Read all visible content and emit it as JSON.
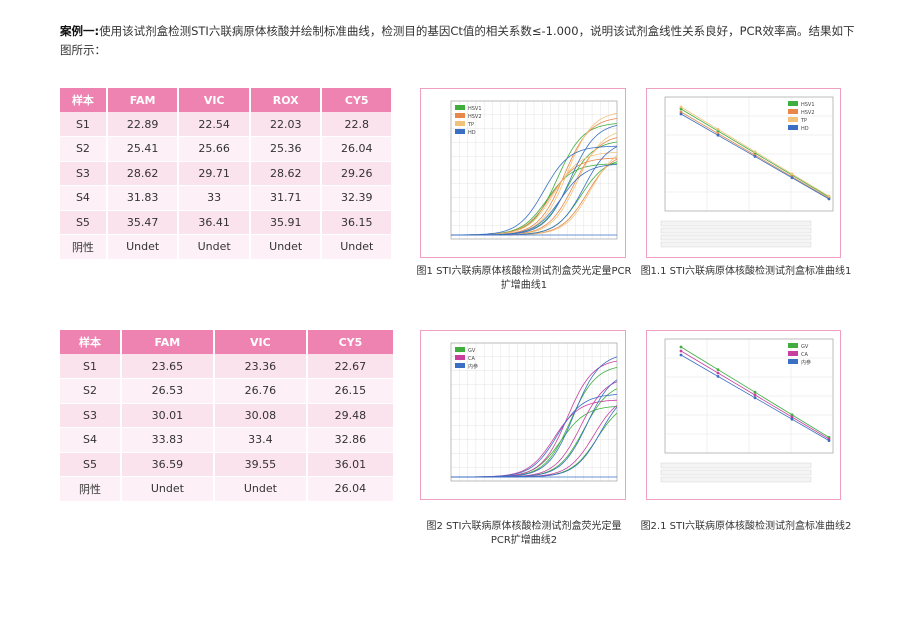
{
  "intro": {
    "label": "案例一:",
    "text": "使用该试剂盒检测STI六联病原体核酸并绘制标准曲线，检测目的基因Ct值的相关系数≤-1.000，说明该试剂盒线性关系良好，PCR效率高。结果如下图所示："
  },
  "table1": {
    "headers": [
      "样本",
      "FAM",
      "VIC",
      "ROX",
      "CY5"
    ],
    "rows": [
      [
        "S1",
        "22.89",
        "22.54",
        "22.03",
        "22.8"
      ],
      [
        "S2",
        "25.41",
        "25.66",
        "25.36",
        "26.04"
      ],
      [
        "S3",
        "28.62",
        "29.71",
        "28.62",
        "29.26"
      ],
      [
        "S4",
        "31.83",
        "33",
        "31.71",
        "32.39"
      ],
      [
        "S5",
        "35.47",
        "36.41",
        "35.91",
        "36.15"
      ],
      [
        "阴性",
        "Undet",
        "Undet",
        "Undet",
        "Undet"
      ]
    ]
  },
  "table2": {
    "headers": [
      "样本",
      "FAM",
      "VIC",
      "CY5"
    ],
    "rows": [
      [
        "S1",
        "23.65",
        "23.36",
        "22.67"
      ],
      [
        "S2",
        "26.53",
        "26.76",
        "26.15"
      ],
      [
        "S3",
        "30.01",
        "30.08",
        "29.48"
      ],
      [
        "S4",
        "33.83",
        "33.4",
        "32.86"
      ],
      [
        "S5",
        "36.59",
        "39.55",
        "36.01"
      ],
      [
        "阴性",
        "Undet",
        "Undet",
        "26.04"
      ]
    ]
  },
  "figures": {
    "fig1": {
      "caption_line1": "图1 STI六联病原体核酸检测试剂盒荧光定量PCR",
      "caption_line2": "扩增曲线1"
    },
    "fig1_1": {
      "caption": "图1.1 STI六联病原体核酸检测试剂盒标准曲线1"
    },
    "fig2": {
      "caption_line1": "图2 STI六联病原体核酸检测试剂盒荧光定量",
      "caption_line2": "PCR扩增曲线2"
    },
    "fig2_1": {
      "caption": "图2.1 STI六联病原体核酸检测试剂盒标准曲线2"
    }
  },
  "chart_data": [
    {
      "type": "line",
      "legend": [
        {
          "dye": "FAM",
          "name": "HSV1",
          "color": "#3fae3f"
        },
        {
          "dye": "VIC",
          "name": "HSV2",
          "color": "#e8874a"
        },
        {
          "dye": "ROX",
          "name": "TP",
          "color": "#f2c27a"
        },
        {
          "dye": "CY5",
          "name": "HD",
          "color": "#3a6fc4"
        }
      ],
      "legend_position": "top-left",
      "grid": true
    },
    {
      "type": "scatter",
      "legend": [
        {
          "dye": "FAM",
          "name": "HSV1",
          "color": "#3fae3f"
        },
        {
          "dye": "VIC",
          "name": "HSV2",
          "color": "#e8874a"
        },
        {
          "dye": "ROX",
          "name": "TP",
          "color": "#f2c27a"
        },
        {
          "dye": "CY5",
          "name": "HD",
          "color": "#3a6fc4"
        }
      ],
      "legend_position": "top-right",
      "grid": true
    },
    {
      "type": "line",
      "legend": [
        {
          "dye": "FAM",
          "name": "GV",
          "color": "#3fae3f"
        },
        {
          "dye": "VIC",
          "name": "CA",
          "color": "#c83fa0"
        },
        {
          "dye": "CY5",
          "name": "内参",
          "color": "#3a6fc4"
        }
      ],
      "legend_position": "top-left",
      "grid": true
    },
    {
      "type": "scatter",
      "legend": [
        {
          "dye": "FAM",
          "name": "GV",
          "color": "#3fae3f"
        },
        {
          "dye": "VIC",
          "name": "CA",
          "color": "#c83fa0"
        },
        {
          "dye": "CY5",
          "name": "内参",
          "color": "#3a6fc4"
        }
      ],
      "legend_position": "top-right",
      "grid": true
    }
  ],
  "colors": {
    "accent": "#ee82b0",
    "row_odd": "#fbe3ee",
    "row_even": "#fdf1f7",
    "panel_border": "#ee9fc2"
  }
}
